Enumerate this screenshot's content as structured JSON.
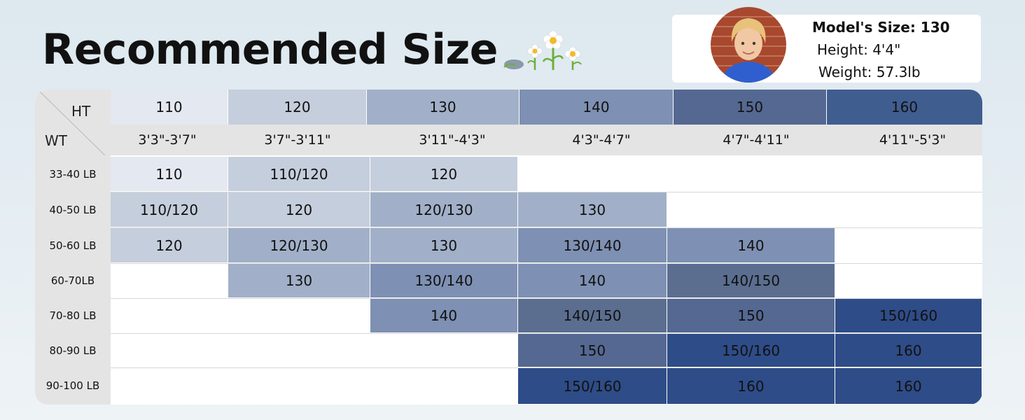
{
  "title": "Recommended Size",
  "model": {
    "size_label": "Model's Size: 130",
    "height_label": "Height: 4'4\"",
    "weight_label": "Weight: 57.3lb"
  },
  "table": {
    "corner_top": "HT",
    "corner_bottom": "WT",
    "sizes": [
      "110",
      "120",
      "130",
      "140",
      "150",
      "160"
    ],
    "heights": [
      "3'3\"-3'7\"",
      "3'7\"-3'11\"",
      "3'11\"-4'3\"",
      "4'3\"-4'7\"",
      "4'7\"-4'11\"",
      "4'11\"-5'3\""
    ],
    "weights": [
      "33-40 LB",
      "40-50 LB",
      "50-60 LB",
      "60-70LB",
      "70-80 LB",
      "80-90 LB",
      "90-100 LB"
    ],
    "rows": [
      [
        "110",
        "110/120",
        "120"
      ],
      [
        "110/120",
        "120",
        "120/130",
        "130"
      ],
      [
        "120",
        "120/130",
        "130",
        "130/140",
        "140"
      ],
      [
        "130",
        "130/140",
        "140",
        "140/150"
      ],
      [
        "140",
        "140/150",
        "150",
        "150/160"
      ],
      [
        "150",
        "150/160",
        "160"
      ],
      [
        "150/160",
        "160",
        "160"
      ]
    ]
  },
  "colors": {
    "tone_1": "#e4e8f0",
    "tone_2": "#c5cedc",
    "tone_3": "#a1b0c8",
    "tone_4": "#7e90b3",
    "tone_5": "#5b6e90",
    "tone_6": "#2e4c87",
    "header_gray": "#e4e4e4"
  },
  "icons": {
    "decoration": "daisy-flowers-icon",
    "avatar": "model-avatar-icon"
  }
}
